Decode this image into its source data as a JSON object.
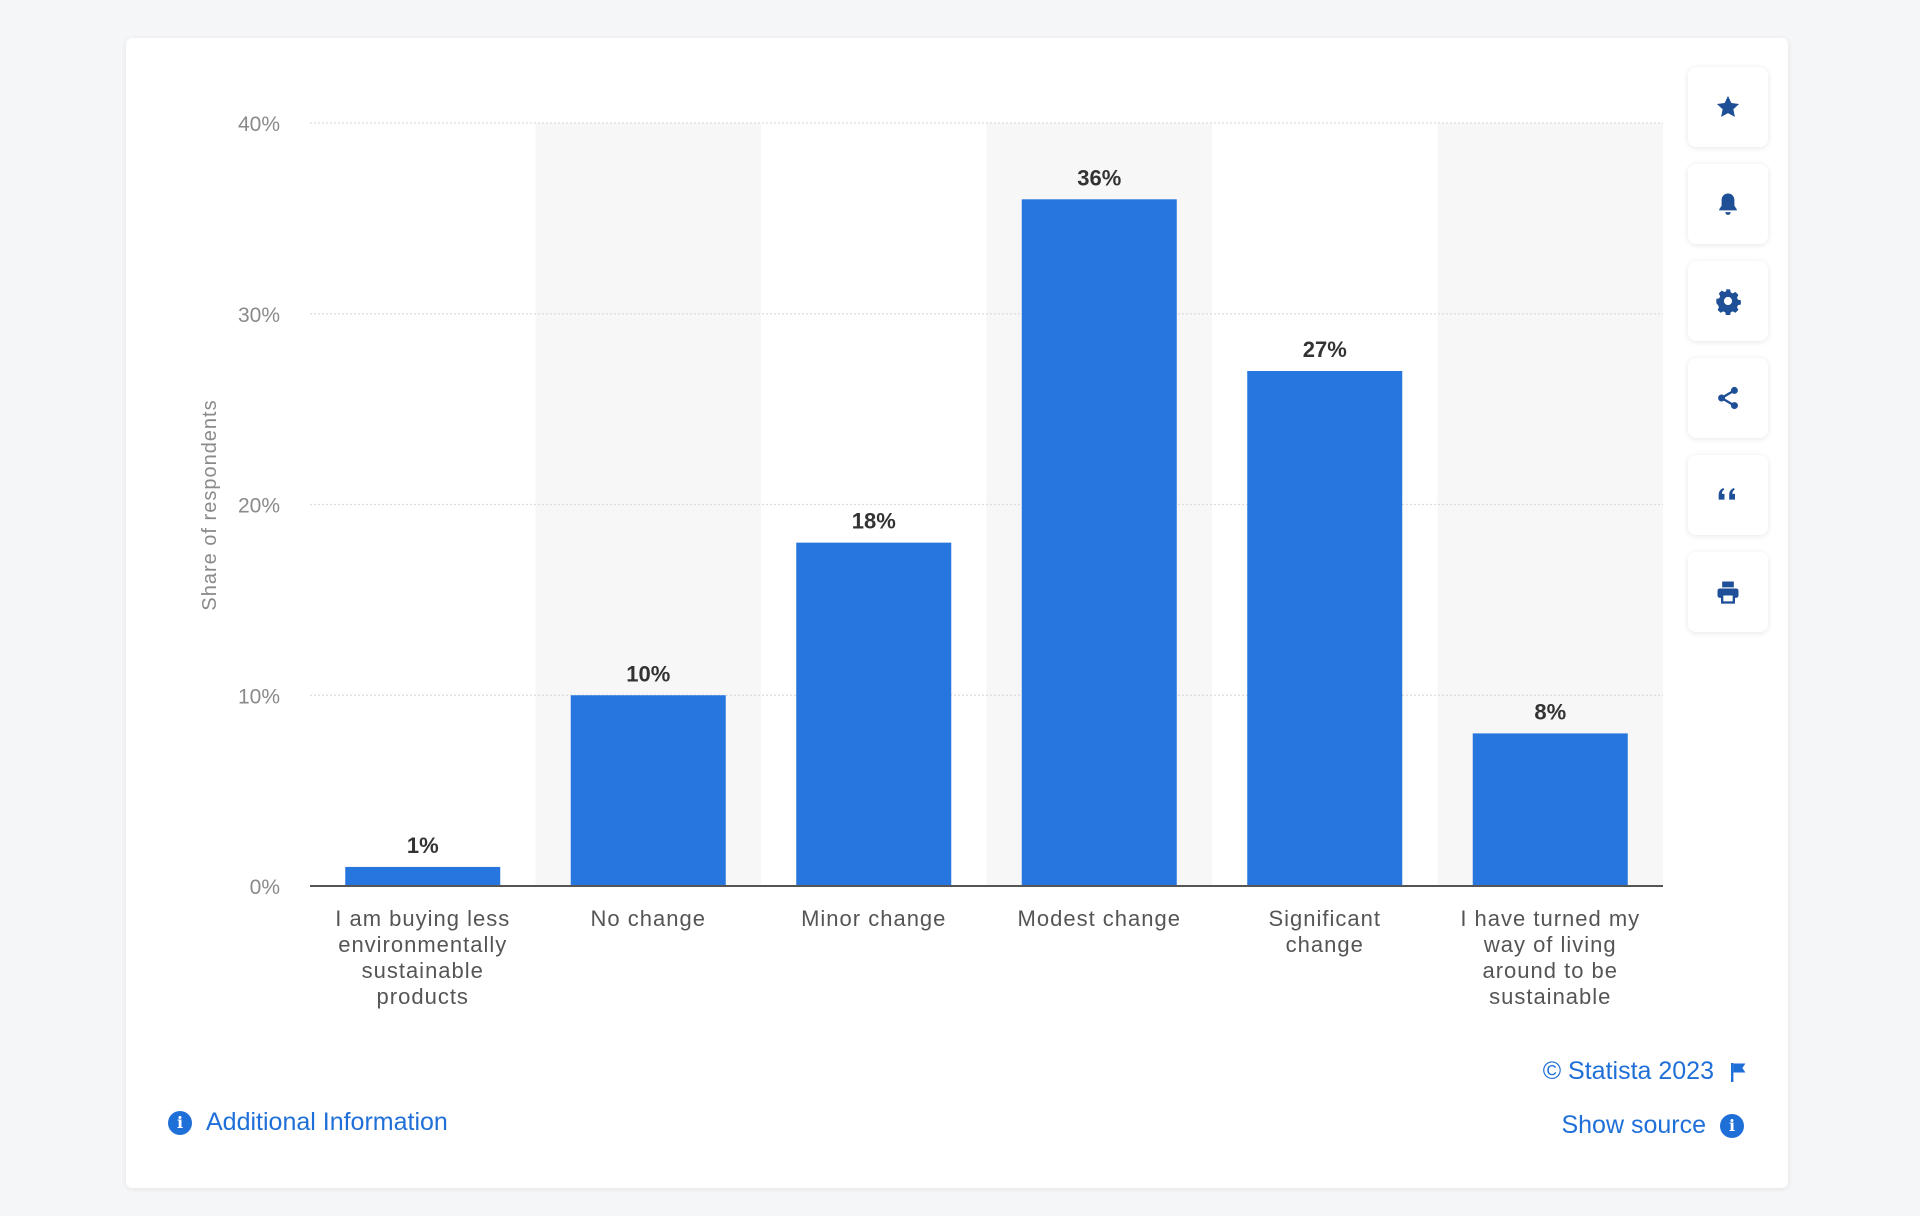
{
  "chart_data": {
    "type": "bar",
    "categories": [
      "I am buying less environmentally sustainable products",
      "No change",
      "Minor change",
      "Modest change",
      "Significant change",
      "I have turned my way of living around to be sustainable"
    ],
    "category_lines": [
      [
        "I am buying less",
        "environmentally",
        "sustainable",
        "products"
      ],
      [
        "No change"
      ],
      [
        "Minor change"
      ],
      [
        "Modest change"
      ],
      [
        "Significant",
        "change"
      ],
      [
        "I have turned my",
        "way of living",
        "around to be",
        "sustainable"
      ]
    ],
    "values": [
      1,
      10,
      18,
      36,
      27,
      8
    ],
    "value_labels": [
      "1%",
      "10%",
      "18%",
      "36%",
      "27%",
      "8%"
    ],
    "ylabel": "Share of respondents",
    "ylim": [
      0,
      40
    ],
    "yticks": [
      0,
      10,
      20,
      30,
      40
    ],
    "ytick_labels": [
      "0%",
      "10%",
      "20%",
      "30%",
      "40%"
    ],
    "grid": true,
    "bar_color": "#2775de",
    "alt_band_color": "#f7f7f8"
  },
  "toolbar": {
    "buttons": [
      "star-icon",
      "bell-icon",
      "gear-icon",
      "share-icon",
      "quote-icon",
      "print-icon"
    ]
  },
  "footer": {
    "additional_info": "Additional Information",
    "credit": "© Statista 2023",
    "show_source": "Show source",
    "link_color": "#1f6fd8"
  }
}
